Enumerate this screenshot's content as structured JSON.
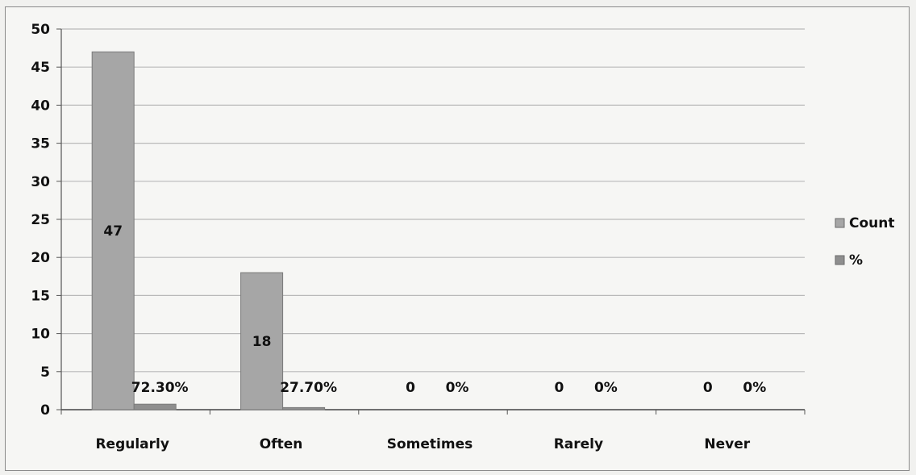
{
  "chart_data": {
    "type": "bar",
    "categories": [
      "Regularly",
      "Often",
      "Sometimes",
      "Rarely",
      "Never"
    ],
    "series": [
      {
        "name": "Count",
        "values": [
          47,
          18,
          0,
          0,
          0
        ],
        "labels": [
          "47",
          "18",
          "0",
          "0",
          "0"
        ],
        "color": "#a6a6a6"
      },
      {
        "name": "%",
        "values": [
          0.723,
          0.277,
          0,
          0,
          0
        ],
        "labels": [
          "72.30%",
          "27.70%",
          "0%",
          "0%",
          "0%"
        ],
        "color": "#8e8e8e"
      }
    ],
    "ylim": [
      0,
      50
    ],
    "yticks": [
      0,
      5,
      10,
      15,
      20,
      25,
      30,
      35,
      40,
      45,
      50
    ],
    "grid": true,
    "legend_position": "right",
    "title": "",
    "xlabel": "",
    "ylabel": ""
  }
}
